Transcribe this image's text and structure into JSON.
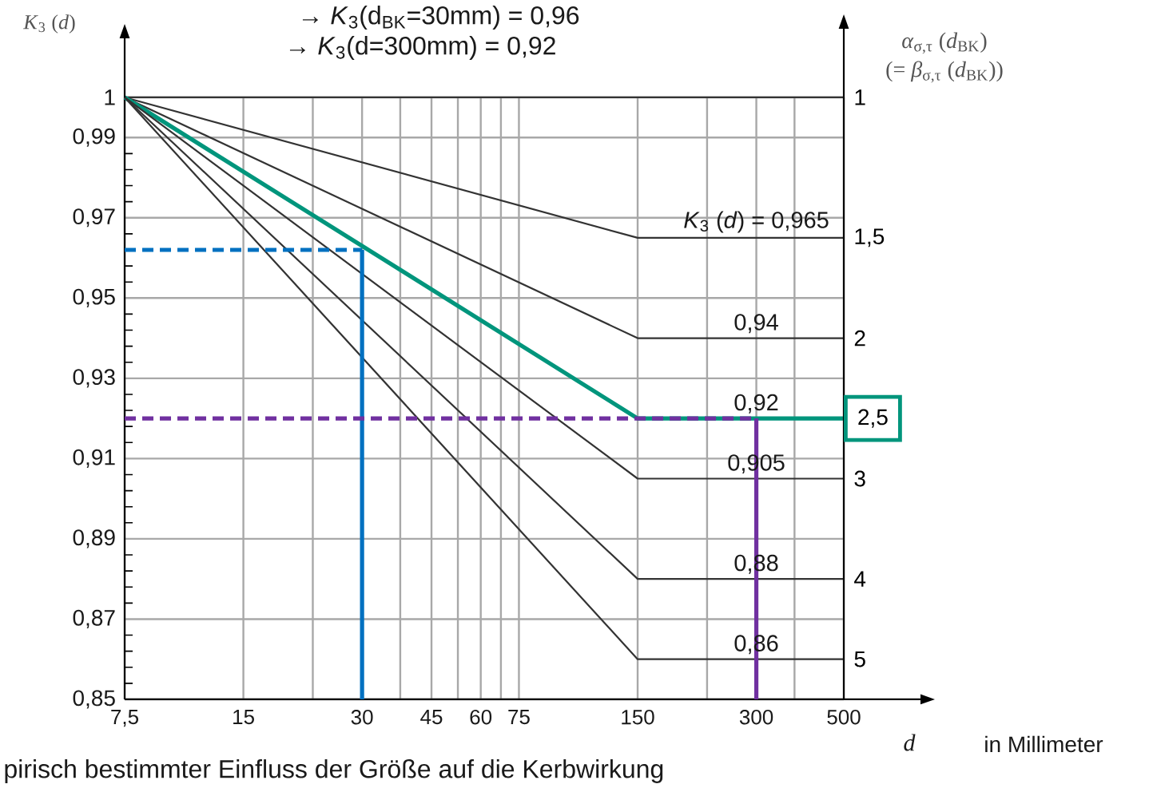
{
  "chart_data": {
    "type": "line",
    "xlabel": "*d*",
    "ylabel": "*K*$_{3}$ (*d*)",
    "annotations": [
      "→ *K*$_{3}$(d$_{BK}$=30mm) = 0,96",
      "→ *K*$_{3}$(d=300mm) = 0,92",
      "*α*$_{σ,τ}$ (*d*$_{BK}$)",
      "(= *β*$_{σ,τ}$ (*d*$_{BK}$))",
      "in Millimeter",
      "pirisch bestimmter Einfluss der Größe auf die Kerbwirkung"
    ],
    "x": [
      7.5,
      150,
      300,
      500
    ],
    "color": "#333333",
    "series": [
      {
        "name": "1",
        "values": [
          1,
          1,
          1,
          1
        ]
      },
      {
        "name": "1,5",
        "values": [
          1,
          0.965,
          0.965,
          0.965
        ],
        "value_labels": [
          null,
          null,
          "*K*$_{3}$ (*d*) = 0,965",
          null
        ]
      },
      {
        "name": "2",
        "values": [
          1,
          0.94,
          0.94,
          0.94
        ],
        "value_labels": [
          null,
          null,
          "0,94",
          null
        ]
      },
      {
        "name": "2,5",
        "color": "#00957c",
        "values": [
          1,
          0.92,
          0.92,
          0.92
        ],
        "value_labels": [
          null,
          null,
          "0,92",
          null
        ]
      },
      {
        "name": "3",
        "values": [
          1,
          0.905,
          0.905,
          0.905
        ],
        "value_labels": [
          null,
          null,
          "0,905",
          null
        ]
      },
      {
        "name": "4",
        "values": [
          1,
          0.88,
          0.88,
          0.88
        ],
        "value_labels": [
          null,
          null,
          "0,88",
          null
        ]
      },
      {
        "name": "5",
        "values": [
          1,
          0.86,
          0.86,
          0.86
        ],
        "value_labels": [
          null,
          null,
          "0,86",
          null
        ]
      },
      {
        "x": [
          7.5,
          30
        ],
        "values": [
          0.962,
          0.962
        ],
        "color": "#0070c0",
        "line_style": "dashed"
      },
      {
        "x": [
          30,
          30
        ],
        "values": [
          0.962,
          0.85
        ],
        "color": "#0070c0"
      },
      {
        "x": [
          7.5,
          300
        ],
        "values": [
          0.92,
          0.92
        ],
        "color": "#7030a0",
        "line_style": "dashed"
      },
      {
        "x": [
          300,
          300
        ],
        "values": [
          0.92,
          0.85
        ],
        "color": "#7030a0"
      }
    ],
    "xlim": [
      7.5,
      500
    ],
    "ylim": [
      0.85,
      1
    ],
    "xticks": [
      {
        "value": 7.5,
        "label": "7,5"
      },
      15,
      {
        "value": 22.5,
        "label": null
      },
      30,
      {
        "value": 37.5,
        "label": null
      },
      45,
      {
        "value": 52.5,
        "label": null
      },
      60,
      {
        "value": 67.5,
        "label": null
      },
      75,
      150,
      {
        "value": 225,
        "label": null
      },
      300,
      {
        "value": 375,
        "label": null
      },
      500
    ],
    "yticks": [
      {
        "value": 0.85,
        "label": "0,85"
      },
      {
        "value": 0.87,
        "label": "0,87"
      },
      {
        "value": 0.89,
        "label": "0,89"
      },
      {
        "value": 0.91,
        "label": "0,91"
      },
      {
        "value": 0.93,
        "label": "0,93"
      },
      {
        "value": 0.95,
        "label": "0,95"
      },
      {
        "value": 0.97,
        "label": "0,97"
      },
      {
        "value": 0.99,
        "label": "0,99"
      },
      1
    ],
    "log": "x",
    "grid": true,
    "marker": "none"
  }
}
